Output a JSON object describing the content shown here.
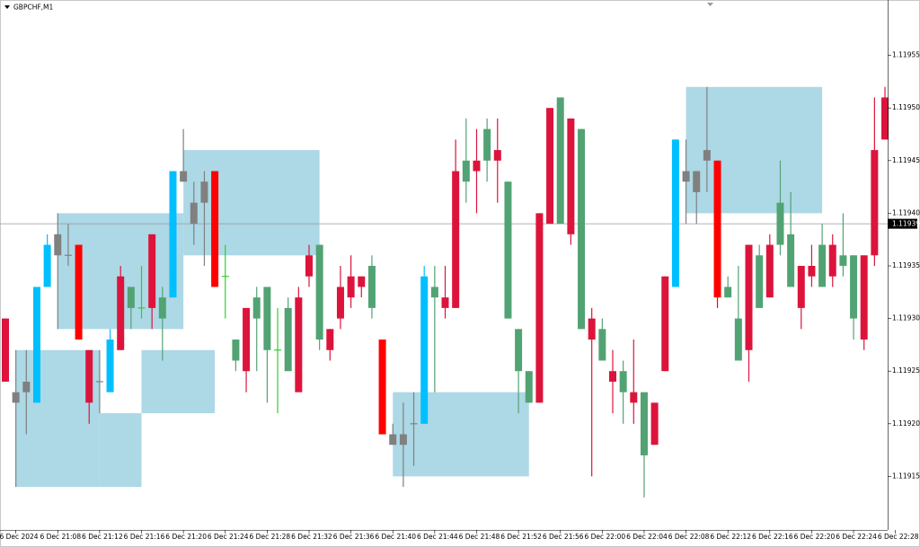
{
  "chart_data": {
    "type": "candlestick",
    "title": "GBPCHF,M1",
    "x": [
      "21:03",
      "21:04",
      "21:05",
      "21:06",
      "21:07",
      "21:08",
      "21:09",
      "21:10",
      "21:11",
      "21:12",
      "21:13",
      "21:14",
      "21:15",
      "21:16",
      "21:17",
      "21:18",
      "21:19",
      "21:20",
      "21:21",
      "21:22",
      "21:23",
      "21:24",
      "21:25",
      "21:26",
      "21:27",
      "21:28",
      "21:29",
      "21:30",
      "21:31",
      "21:32",
      "21:33",
      "21:34",
      "21:35",
      "21:36",
      "21:37",
      "21:38",
      "21:39",
      "21:40",
      "21:41",
      "21:42",
      "21:43",
      "21:44",
      "21:45",
      "21:46",
      "21:47",
      "21:48",
      "21:49",
      "21:50",
      "21:51",
      "21:52",
      "21:53",
      "21:54",
      "21:55",
      "21:56",
      "21:57",
      "21:58",
      "21:59",
      "22:00",
      "22:01",
      "22:02",
      "22:03",
      "22:04",
      "22:05",
      "22:06",
      "22:07",
      "22:08",
      "22:09",
      "22:10",
      "22:11",
      "22:12",
      "22:13",
      "22:14",
      "22:15",
      "22:16",
      "22:17",
      "22:18",
      "22:19",
      "22:20",
      "22:21",
      "22:22",
      "22:23",
      "22:24",
      "22:25",
      "22:26",
      "22:27"
    ],
    "open": [
      1.1193,
      1.11923,
      1.11923,
      1.11922,
      1.11933,
      1.11936,
      1.11936,
      1.11937,
      1.11927,
      1.11924,
      1.11923,
      1.11934,
      1.11931,
      1.11931,
      1.11938,
      1.1193,
      1.11932,
      1.11943,
      1.11939,
      1.11941,
      1.11944,
      1.11934,
      1.11926,
      1.11931,
      1.1193,
      1.11927,
      1.11927,
      1.11925,
      1.11932,
      1.11936,
      1.11928,
      1.11929,
      1.11933,
      1.11934,
      1.11934,
      1.11931,
      1.11928,
      1.11919,
      1.11918,
      1.1192,
      1.1192,
      1.11932,
      1.11932,
      1.11944,
      1.11943,
      1.11945,
      1.11945,
      1.11946,
      1.1193,
      1.11925,
      1.11922,
      1.1194,
      1.1195,
      1.11939,
      1.11949,
      1.11929,
      1.1193,
      1.11926,
      1.11925,
      1.11923,
      1.11923,
      1.11917,
      1.11922,
      1.11934,
      1.11933,
      1.11944,
      1.11944,
      1.11946,
      1.11945,
      1.11932,
      1.11926,
      1.11937,
      1.11931,
      1.11937,
      1.11937,
      1.11933,
      1.11935,
      1.11935,
      1.11933,
      1.11937,
      1.11935,
      1.1193,
      1.11936,
      1.11946,
      1.11951
    ],
    "high": [
      1.1193,
      1.11927,
      1.11927,
      1.11933,
      1.11938,
      1.1194,
      1.11939,
      1.11937,
      1.11927,
      1.11927,
      1.11929,
      1.11935,
      1.11933,
      1.11935,
      1.11938,
      1.11933,
      1.11944,
      1.11948,
      1.11943,
      1.11944,
      1.11944,
      1.11937,
      1.11928,
      1.11931,
      1.11933,
      1.11933,
      1.11931,
      1.11932,
      1.11933,
      1.11937,
      1.11937,
      1.11929,
      1.11935,
      1.11936,
      1.11934,
      1.11936,
      1.11928,
      1.1192,
      1.11922,
      1.11923,
      1.11935,
      1.11935,
      1.11935,
      1.11947,
      1.11949,
      1.11948,
      1.11949,
      1.11949,
      1.11943,
      1.11929,
      1.11925,
      1.1194,
      1.1195,
      1.11951,
      1.11949,
      1.11948,
      1.11931,
      1.1193,
      1.11927,
      1.11926,
      1.11928,
      1.11923,
      1.11922,
      1.11934,
      1.11947,
      1.11947,
      1.11944,
      1.11952,
      1.11945,
      1.11934,
      1.11935,
      1.11937,
      1.11937,
      1.11938,
      1.11945,
      1.11942,
      1.11935,
      1.11937,
      1.11939,
      1.11938,
      1.1194,
      1.11936,
      1.11936,
      1.11951,
      1.11952
    ],
    "low": [
      1.11924,
      1.11914,
      1.11919,
      1.11922,
      1.11933,
      1.11929,
      1.11935,
      1.11928,
      1.1192,
      1.11921,
      1.11923,
      1.11927,
      1.11929,
      1.1193,
      1.11929,
      1.11926,
      1.11932,
      1.11943,
      1.11937,
      1.11935,
      1.11933,
      1.1193,
      1.11925,
      1.11923,
      1.11925,
      1.11922,
      1.11921,
      1.11925,
      1.11923,
      1.11933,
      1.11927,
      1.11926,
      1.11929,
      1.11931,
      1.11932,
      1.1193,
      1.11919,
      1.11918,
      1.11914,
      1.11916,
      1.1192,
      1.11923,
      1.1193,
      1.11931,
      1.11941,
      1.1194,
      1.11943,
      1.11941,
      1.1193,
      1.11921,
      1.11922,
      1.11922,
      1.11939,
      1.11939,
      1.11937,
      1.11929,
      1.11915,
      1.11926,
      1.11921,
      1.1192,
      1.1192,
      1.11913,
      1.11918,
      1.11925,
      1.11933,
      1.11939,
      1.11939,
      1.11942,
      1.11931,
      1.11932,
      1.11926,
      1.11924,
      1.11931,
      1.11932,
      1.11936,
      1.11933,
      1.11929,
      1.11933,
      1.11933,
      1.11933,
      1.11934,
      1.11928,
      1.11927,
      1.11935,
      1.11947
    ],
    "close": [
      1.11924,
      1.11922,
      1.11924,
      1.11933,
      1.11937,
      1.11938,
      1.11936,
      1.11928,
      1.11922,
      1.11924,
      1.11928,
      1.11927,
      1.11933,
      1.11931,
      1.11931,
      1.11932,
      1.11944,
      1.11944,
      1.11941,
      1.11943,
      1.11933,
      1.11934,
      1.11928,
      1.11925,
      1.11932,
      1.11933,
      1.11927,
      1.11931,
      1.11923,
      1.11934,
      1.11937,
      1.11927,
      1.1193,
      1.11932,
      1.11933,
      1.11935,
      1.11919,
      1.11918,
      1.11919,
      1.1192,
      1.11934,
      1.11933,
      1.11931,
      1.11931,
      1.11945,
      1.11944,
      1.11948,
      1.11945,
      1.11943,
      1.11929,
      1.11925,
      1.11922,
      1.11939,
      1.11951,
      1.11938,
      1.11948,
      1.11928,
      1.11929,
      1.11924,
      1.11925,
      1.11922,
      1.11923,
      1.11918,
      1.11925,
      1.11947,
      1.11943,
      1.11942,
      1.11945,
      1.11932,
      1.11933,
      1.1193,
      1.11927,
      1.11936,
      1.11932,
      1.11941,
      1.11938,
      1.11931,
      1.11934,
      1.11937,
      1.11934,
      1.11936,
      1.11936,
      1.11928,
      1.11936,
      1.11947
    ],
    "colors": [
      "#dc143c",
      "#808080",
      "#808080",
      "#00bfff",
      "#00bfff",
      "#808080",
      "#808080",
      "#ff0000",
      "#dc143c",
      "#808080",
      "#00bfff",
      "#dc143c",
      "#52a373",
      "#32cd32",
      "#dc143c",
      "#52a373",
      "#00bfff",
      "#808080",
      "#808080",
      "#808080",
      "#ff0000",
      "#32cd32",
      "#52a373",
      "#dc143c",
      "#52a373",
      "#52a373",
      "#32cd32",
      "#52a373",
      "#dc143c",
      "#dc143c",
      "#52a373",
      "#dc143c",
      "#dc143c",
      "#dc143c",
      "#dc143c",
      "#52a373",
      "#ff0000",
      "#808080",
      "#808080",
      "#808080",
      "#00bfff",
      "#52a373",
      "#dc143c",
      "#dc143c",
      "#52a373",
      "#dc143c",
      "#52a373",
      "#dc143c",
      "#52a373",
      "#52a373",
      "#52a373",
      "#dc143c",
      "#dc143c",
      "#52a373",
      "#dc143c",
      "#52a373",
      "#dc143c",
      "#52a373",
      "#dc143c",
      "#52a373",
      "#dc143c",
      "#52a373",
      "#dc143c",
      "#dc143c",
      "#00bfff",
      "#808080",
      "#808080",
      "#808080",
      "#ff0000",
      "#52a373",
      "#52a373",
      "#dc143c",
      "#52a373",
      "#dc143c",
      "#52a373",
      "#52a373",
      "#dc143c",
      "#dc143c",
      "#52a373",
      "#dc143c",
      "#52a373",
      "#52a373",
      "#dc143c",
      "#dc143c",
      "#dc143c"
    ],
    "zones": [
      {
        "start": "21:04",
        "end": "21:12",
        "top": 1.11927,
        "bottom": 1.11914
      },
      {
        "start": "21:12",
        "end": "21:16",
        "top": 1.11921,
        "bottom": 1.11914
      },
      {
        "start": "21:16",
        "end": "21:23",
        "top": 1.11927,
        "bottom": 1.11921
      },
      {
        "start": "21:08",
        "end": "21:20",
        "top": 1.1194,
        "bottom": 1.11929
      },
      {
        "start": "21:20",
        "end": "21:33",
        "top": 1.11946,
        "bottom": 1.11936
      },
      {
        "start": "21:40",
        "end": "21:53",
        "top": 1.11923,
        "bottom": 1.11915
      },
      {
        "start": "22:08",
        "end": "22:21",
        "top": 1.11952,
        "bottom": 1.1194
      }
    ],
    "zone_color": "#add8e6",
    "current_price": 1.11939,
    "ylim": [
      1.1191,
      1.1196
    ],
    "yticks": [
      1.11915,
      {
        "value": 1.1192,
        "label": "1.11920"
      },
      1.11925,
      {
        "value": 1.1193,
        "label": "1.11930"
      },
      1.11935,
      {
        "value": 1.1194,
        "label": "1.11940"
      },
      1.11945,
      {
        "value": 1.1195,
        "label": "1.11950"
      },
      1.11955
    ],
    "xticks": [
      {
        "value": "21:04",
        "label": "6 Dec 2024"
      },
      {
        "value": "21:08",
        "label": "6 Dec 21:08"
      },
      {
        "value": "21:12",
        "label": "6 Dec 21:12"
      },
      {
        "value": "21:16",
        "label": "6 Dec 21:16"
      },
      {
        "value": "21:20",
        "label": "6 Dec 21:20"
      },
      {
        "value": "21:24",
        "label": "6 Dec 21:24"
      },
      {
        "value": "21:28",
        "label": "6 Dec 21:28"
      },
      {
        "value": "21:32",
        "label": "6 Dec 21:32"
      },
      {
        "value": "21:36",
        "label": "6 Dec 21:36"
      },
      {
        "value": "21:40",
        "label": "6 Dec 21:40"
      },
      {
        "value": "21:44",
        "label": "6 Dec 21:44"
      },
      {
        "value": "21:48",
        "label": "6 Dec 21:48"
      },
      {
        "value": "21:52",
        "label": "6 Dec 21:52"
      },
      {
        "value": "21:56",
        "label": "6 Dec 21:56"
      },
      {
        "value": "22:00",
        "label": "6 Dec 22:00"
      },
      {
        "value": "22:04",
        "label": "6 Dec 22:04"
      },
      {
        "value": "22:08",
        "label": "6 Dec 22:08"
      },
      {
        "value": "22:12",
        "label": "6 Dec 22:12"
      },
      {
        "value": "22:16",
        "label": "6 Dec 22:16"
      },
      {
        "value": "22:20",
        "label": "6 Dec 22:20"
      },
      {
        "value": "22:24",
        "label": "6 Dec 22:24"
      },
      {
        "value": "22:28",
        "label": "6 Dec 22:28"
      }
    ]
  }
}
